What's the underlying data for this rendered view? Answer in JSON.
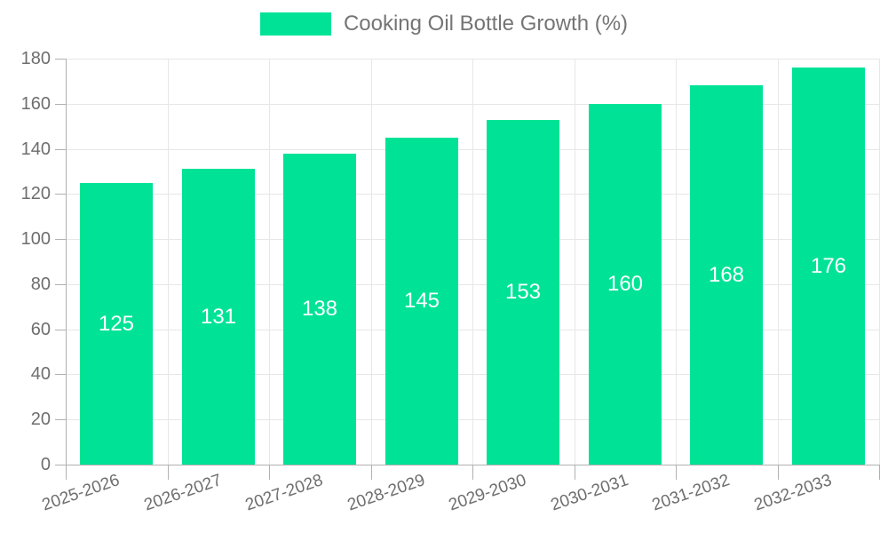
{
  "legend": {
    "label": "Cooking Oil Bottle Growth (%)"
  },
  "chart_data": {
    "type": "bar",
    "title": "Cooking Oil Bottle Growth (%)",
    "categories": [
      "2025-2026",
      "2026-2027",
      "2027-2028",
      "2028-2029",
      "2029-2030",
      "2030-2031",
      "2031-2032",
      "2032-2033"
    ],
    "values": [
      125,
      131,
      138,
      145,
      153,
      160,
      168,
      176
    ],
    "value_labels": [
      "125",
      "131",
      "138",
      "145",
      "153",
      "160",
      "168",
      "176"
    ],
    "xlabel": "",
    "ylabel": "",
    "ylim": [
      0,
      180
    ],
    "yticks": [
      0,
      20,
      40,
      60,
      80,
      100,
      120,
      140,
      160,
      180
    ],
    "grid": true,
    "legend_position": "top",
    "colors": {
      "bar": "#00E396",
      "value_label": "#ffffff",
      "axis_text": "#6e6e6e",
      "legend_text": "#757575",
      "grid_line": "#e7e7e7",
      "axis_line": "#b1b1b1"
    }
  }
}
